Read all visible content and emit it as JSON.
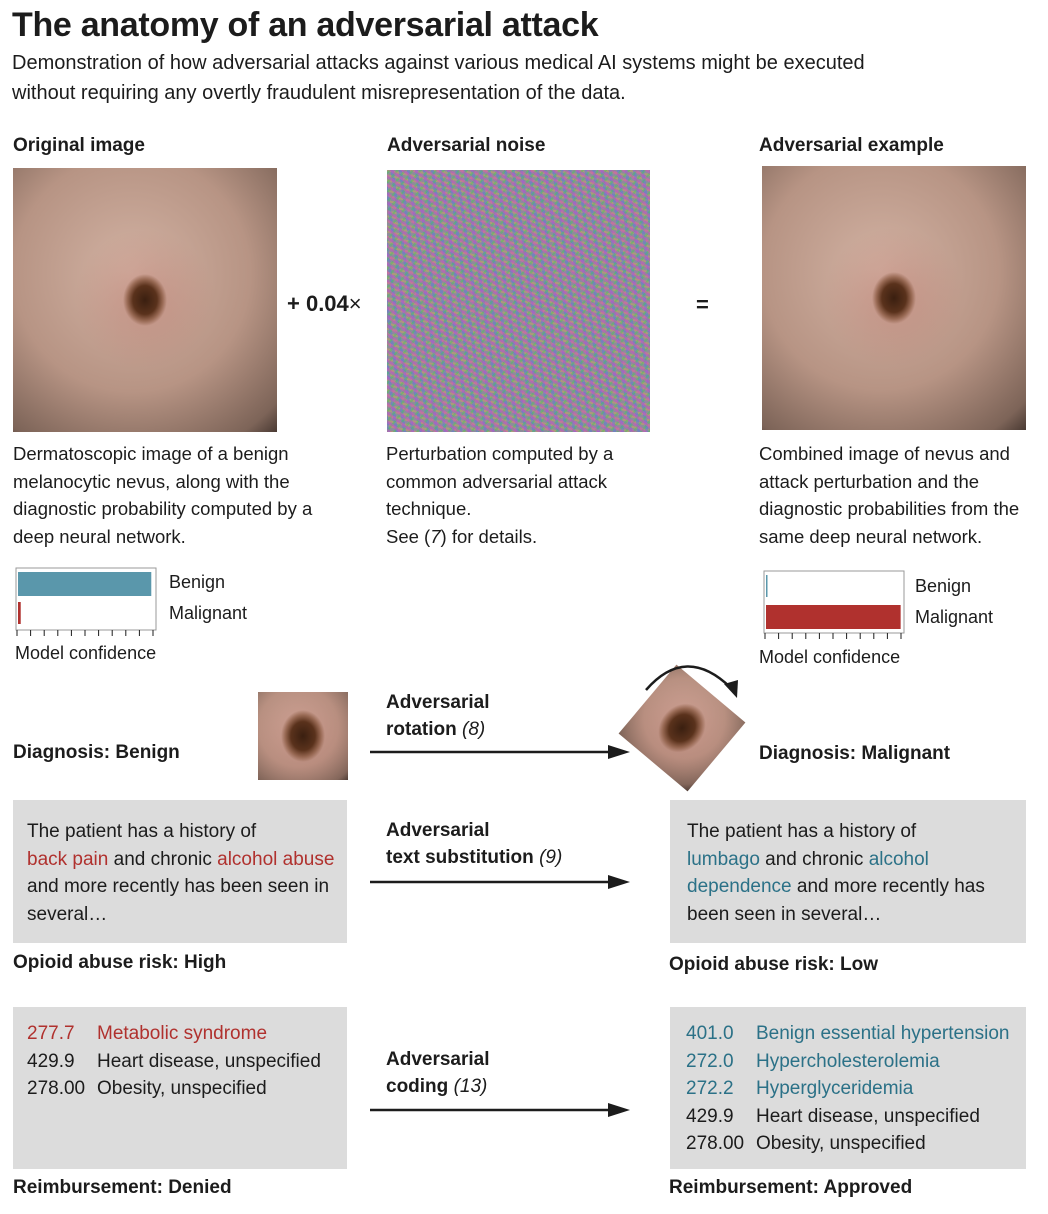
{
  "title": "The anatomy of an adversarial attack",
  "subtitle": "Demonstration of how adversarial attacks against various medical AI systems might be executed without requiring any overtly fraudulent misrepresentation of the data.",
  "panels": {
    "original": {
      "heading": "Original image",
      "caption": "Dermatoscopic image of a benign melanocytic nevus, along with the diagnostic probability computed by a deep neural network."
    },
    "noise": {
      "heading": "Adversarial noise",
      "caption_main": "Perturbation computed by a common adversarial attack technique.",
      "caption_see": "See (",
      "caption_ref": "7",
      "caption_end": ") for details."
    },
    "example": {
      "heading": "Adversarial example",
      "caption": "Combined image of nevus and attack perturbation and the diagnostic probabilities from the same deep neural network."
    },
    "operator_plus": "+ 0.04",
    "operator_times": "×",
    "operator_equals": "="
  },
  "confidence": {
    "axis_label": "Model confidence",
    "benign_label": "Benign",
    "malignant_label": "Malignant",
    "original": {
      "benign": 0.98,
      "malignant": 0.02
    },
    "adversarial": {
      "benign": 0.01,
      "malignant": 0.99
    },
    "colors": {
      "benign": "#5a97ab",
      "malignant": "#b0312e"
    }
  },
  "rotation": {
    "label_line1": "Adversarial",
    "label_line2": "rotation",
    "cite": "(8)",
    "left_diagnosis": "Diagnosis: Benign",
    "right_diagnosis": "Diagnosis: Malignant"
  },
  "text_sub": {
    "label_line1": "Adversarial",
    "label_line2": "text substitution",
    "cite": "(9)",
    "left": {
      "t1": "The patient has a history of",
      "h1": "back pain",
      "t2": " and chronic ",
      "h2": "alcohol abuse",
      "t3": " and more recently has been seen in several…"
    },
    "right": {
      "t1": "The patient has a history of",
      "h1": "lumbago",
      "t2": " and chronic ",
      "h2": "alcohol dependence",
      "t3": " and more recently has been seen in several…"
    },
    "left_result": "Opioid abuse risk: High",
    "right_result": "Opioid abuse risk: Low"
  },
  "coding": {
    "label_line1": "Adversarial",
    "label_line2": "coding",
    "cite": "(13)",
    "left_codes": [
      {
        "code": "277.7",
        "desc": "Metabolic syndrome",
        "highlight": true
      },
      {
        "code": "429.9",
        "desc": "Heart disease, unspecified",
        "highlight": false
      },
      {
        "code": "278.00",
        "desc": "Obesity, unspecified",
        "highlight": false
      }
    ],
    "right_codes": [
      {
        "code": "401.0",
        "desc": "Benign essential hypertension",
        "highlight": true
      },
      {
        "code": "272.0",
        "desc": "Hypercholesterolemia",
        "highlight": true
      },
      {
        "code": "272.2",
        "desc": "Hyperglyceridemia",
        "highlight": true
      },
      {
        "code": "429.9",
        "desc": "Heart disease, unspecified",
        "highlight": false
      },
      {
        "code": "278.00",
        "desc": "Obesity, unspecified",
        "highlight": false
      }
    ],
    "left_result": "Reimbursement: Denied",
    "right_result": "Reimbursement: Approved"
  }
}
